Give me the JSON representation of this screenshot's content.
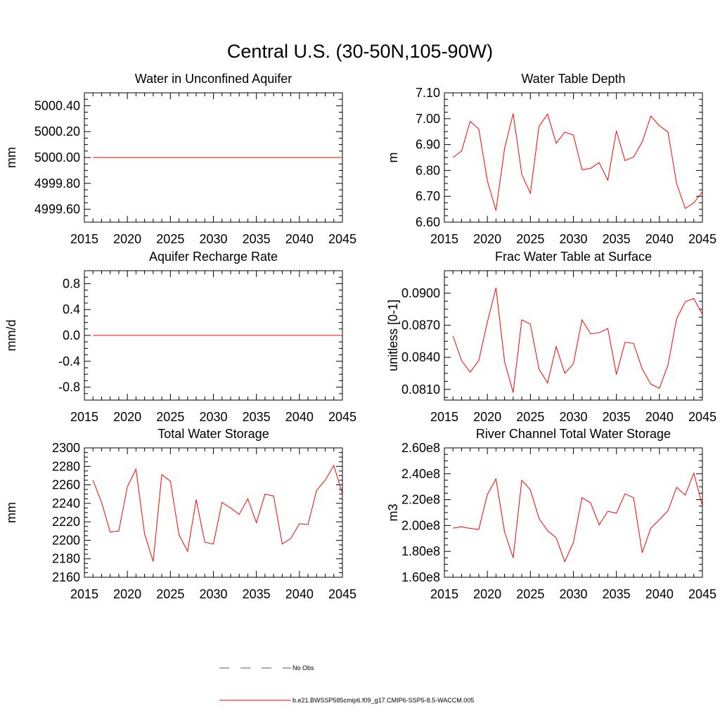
{
  "figure": {
    "title": "Central U.S. (30-50N,105-90W)"
  },
  "chart_data": [
    {
      "type": "line",
      "title": "Water in Unconfined Aquifer",
      "ylabel": "mm",
      "xlim": [
        2015,
        2045
      ],
      "ylim": [
        4999.5,
        5000.5
      ],
      "xticks": [
        2015,
        2020,
        2025,
        2030,
        2035,
        2040,
        2045
      ],
      "yticks": [
        4999.6,
        4999.8,
        5000.0,
        5000.2,
        5000.4
      ],
      "ytick_labels": [
        "4999.60",
        "4999.80",
        "5000.00",
        "5000.20",
        "5000.40"
      ],
      "x": [
        2016,
        2017,
        2018,
        2019,
        2020,
        2021,
        2022,
        2023,
        2024,
        2025,
        2026,
        2027,
        2028,
        2029,
        2030,
        2031,
        2032,
        2033,
        2034,
        2035,
        2036,
        2037,
        2038,
        2039,
        2040,
        2041,
        2042,
        2043,
        2044,
        2045
      ],
      "series": [
        {
          "values": [
            5000,
            5000,
            5000,
            5000,
            5000,
            5000,
            5000,
            5000,
            5000,
            5000,
            5000,
            5000,
            5000,
            5000,
            5000,
            5000,
            5000,
            5000,
            5000,
            5000,
            5000,
            5000,
            5000,
            5000,
            5000,
            5000,
            5000,
            5000,
            5000,
            5000
          ],
          "color": "#ff0000"
        }
      ]
    },
    {
      "type": "line",
      "title": "Water Table Depth",
      "ylabel": "m",
      "xlim": [
        2015,
        2045
      ],
      "ylim": [
        6.6,
        7.1
      ],
      "xticks": [
        2015,
        2020,
        2025,
        2030,
        2035,
        2040,
        2045
      ],
      "yticks": [
        6.6,
        6.7,
        6.8,
        6.9,
        7.0,
        7.1
      ],
      "ytick_labels": [
        "6.60",
        "6.70",
        "6.80",
        "6.90",
        "7.00",
        "7.10"
      ],
      "x": [
        2016,
        2017,
        2018,
        2019,
        2020,
        2021,
        2022,
        2023,
        2024,
        2025,
        2026,
        2027,
        2028,
        2029,
        2030,
        2031,
        2032,
        2033,
        2034,
        2035,
        2036,
        2037,
        2038,
        2039,
        2040,
        2041,
        2042,
        2043,
        2044,
        2045
      ],
      "series": [
        {
          "values": [
            6.85,
            6.875,
            6.99,
            6.96,
            6.76,
            6.645,
            6.885,
            7.02,
            6.785,
            6.712,
            6.97,
            7.018,
            6.905,
            6.948,
            6.937,
            6.803,
            6.808,
            6.83,
            6.762,
            6.953,
            6.838,
            6.852,
            6.91,
            7.01,
            6.973,
            6.948,
            6.75,
            6.653,
            6.675,
            6.718
          ],
          "color": "#ff0000"
        }
      ]
    },
    {
      "type": "line",
      "title": "Aquifer Recharge Rate",
      "ylabel": "mm/d",
      "xlim": [
        2015,
        2045
      ],
      "ylim": [
        -1.0,
        1.0
      ],
      "xticks": [
        2015,
        2020,
        2025,
        2030,
        2035,
        2040,
        2045
      ],
      "yticks": [
        -0.8,
        -0.4,
        0.0,
        0.4,
        0.8
      ],
      "ytick_labels": [
        "-0.8",
        "-0.4",
        "0.0",
        "0.4",
        "0.8"
      ],
      "x": [
        2016,
        2017,
        2018,
        2019,
        2020,
        2021,
        2022,
        2023,
        2024,
        2025,
        2026,
        2027,
        2028,
        2029,
        2030,
        2031,
        2032,
        2033,
        2034,
        2035,
        2036,
        2037,
        2038,
        2039,
        2040,
        2041,
        2042,
        2043,
        2044,
        2045
      ],
      "series": [
        {
          "values": [
            0,
            0,
            0,
            0,
            0,
            0,
            0,
            0,
            0,
            0,
            0,
            0,
            0,
            0,
            0,
            0,
            0,
            0,
            0,
            0,
            0,
            0,
            0,
            0,
            0,
            0,
            0,
            0,
            0,
            0
          ],
          "color": "#ff0000"
        }
      ]
    },
    {
      "type": "line",
      "title": "Frac Water Table at Surface",
      "ylabel": "unitless [0-1]",
      "xlim": [
        2015,
        2045
      ],
      "ylim": [
        0.08,
        0.0921
      ],
      "xticks": [
        2015,
        2020,
        2025,
        2030,
        2035,
        2040,
        2045
      ],
      "yticks": [
        0.081,
        0.084,
        0.087,
        0.09
      ],
      "ytick_labels": [
        "0.0810",
        "0.0840",
        "0.0870",
        "0.0900"
      ],
      "x": [
        2016,
        2017,
        2018,
        2019,
        2020,
        2021,
        2022,
        2023,
        2024,
        2025,
        2026,
        2027,
        2028,
        2029,
        2030,
        2031,
        2032,
        2033,
        2034,
        2035,
        2036,
        2037,
        2038,
        2039,
        2040,
        2041,
        2042,
        2043,
        2044,
        2045
      ],
      "series": [
        {
          "values": [
            0.086,
            0.0837,
            0.0826,
            0.0837,
            0.0873,
            0.0905,
            0.0836,
            0.0807,
            0.0875,
            0.0871,
            0.0829,
            0.0816,
            0.085,
            0.0825,
            0.0834,
            0.0875,
            0.0862,
            0.0863,
            0.0867,
            0.0824,
            0.0854,
            0.0853,
            0.0829,
            0.0815,
            0.0811,
            0.0833,
            0.0876,
            0.0892,
            0.0895,
            0.088
          ],
          "color": "#ff0000"
        }
      ]
    },
    {
      "type": "line",
      "title": "Total Water Storage",
      "ylabel": "mm",
      "xlim": [
        2015,
        2045
      ],
      "ylim": [
        2160,
        2300
      ],
      "xticks": [
        2015,
        2020,
        2025,
        2030,
        2035,
        2040,
        2045
      ],
      "yticks": [
        2160,
        2180,
        2200,
        2220,
        2240,
        2260,
        2280,
        2300
      ],
      "ytick_labels": [
        "2160",
        "2180",
        "2200",
        "2220",
        "2240",
        "2260",
        "2280",
        "2300"
      ],
      "x": [
        2016,
        2017,
        2018,
        2019,
        2020,
        2021,
        2022,
        2023,
        2024,
        2025,
        2026,
        2027,
        2028,
        2029,
        2030,
        2031,
        2032,
        2033,
        2034,
        2035,
        2036,
        2037,
        2038,
        2039,
        2040,
        2041,
        2042,
        2043,
        2044,
        2045
      ],
      "series": [
        {
          "values": [
            2265,
            2241,
            2209,
            2210,
            2258,
            2277,
            2207,
            2177,
            2271,
            2264,
            2206,
            2188,
            2244,
            2198,
            2196,
            2241,
            2235,
            2228,
            2245,
            2219,
            2250,
            2248,
            2196,
            2202,
            2218,
            2217,
            2254,
            2265,
            2281,
            2250
          ],
          "color": "#ff0000"
        }
      ]
    },
    {
      "type": "line",
      "title": "River Channel Total Water Storage",
      "ylabel": "m3",
      "xlim": [
        2015,
        2045
      ],
      "ylim": [
        160000000,
        260000000
      ],
      "xticks": [
        2015,
        2020,
        2025,
        2030,
        2035,
        2040,
        2045
      ],
      "yticks": [
        160000000,
        180000000,
        200000000,
        220000000,
        240000000,
        260000000
      ],
      "ytick_labels": [
        "1.60e8",
        "1.80e8",
        "2.00e8",
        "2.20e8",
        "2.40e8",
        "2.60e8"
      ],
      "x": [
        2016,
        2017,
        2018,
        2019,
        2020,
        2021,
        2022,
        2023,
        2024,
        2025,
        2026,
        2027,
        2028,
        2029,
        2030,
        2031,
        2032,
        2033,
        2034,
        2035,
        2036,
        2037,
        2038,
        2039,
        2040,
        2041,
        2042,
        2043,
        2044,
        2045
      ],
      "series": [
        {
          "values": [
            198000000,
            199000000,
            197800000,
            197000000,
            224000000,
            236000000,
            195000000,
            175000000,
            235000000,
            227500000,
            205500000,
            196000000,
            190500000,
            172000000,
            187000000,
            221500000,
            217500000,
            200500000,
            211000000,
            209500000,
            224500000,
            221500000,
            179000000,
            198000000,
            204500000,
            211500000,
            229500000,
            223500000,
            240500000,
            215000000
          ],
          "color": "#ff0000"
        }
      ]
    }
  ],
  "legend": {
    "items": [
      {
        "label": "No Obs",
        "color": "#4d4dcc",
        "dash": "dashed"
      },
      {
        "label": "b.e21.BWSSP585cmip6.f09_g17.CMIP6-SSP5-8.5-WACCM.005",
        "color": "#ff0000",
        "dash": "solid"
      }
    ]
  }
}
